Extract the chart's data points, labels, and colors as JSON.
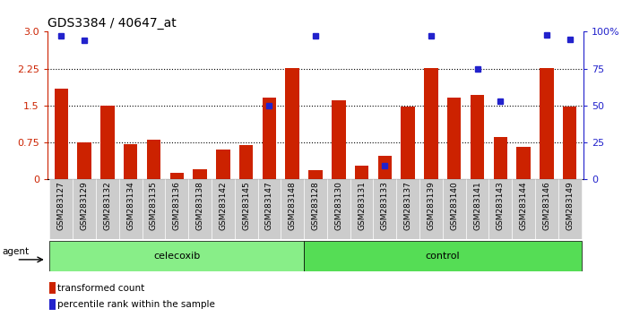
{
  "title": "GDS3384 / 40647_at",
  "samples": [
    "GSM283127",
    "GSM283129",
    "GSM283132",
    "GSM283134",
    "GSM283135",
    "GSM283136",
    "GSM283138",
    "GSM283142",
    "GSM283145",
    "GSM283147",
    "GSM283148",
    "GSM283128",
    "GSM283130",
    "GSM283131",
    "GSM283133",
    "GSM283137",
    "GSM283139",
    "GSM283140",
    "GSM283141",
    "GSM283143",
    "GSM283144",
    "GSM283146",
    "GSM283149"
  ],
  "red_values": [
    1.85,
    0.75,
    1.49,
    0.72,
    0.8,
    0.12,
    0.2,
    0.6,
    0.7,
    1.65,
    2.26,
    0.18,
    1.6,
    0.27,
    0.48,
    1.47,
    2.26,
    1.65,
    1.72,
    0.85,
    0.65,
    2.26,
    1.47
  ],
  "blue_pct": [
    97,
    94,
    null,
    null,
    null,
    null,
    null,
    null,
    null,
    50,
    null,
    97,
    null,
    null,
    9,
    null,
    97,
    null,
    75,
    53,
    null,
    98,
    95
  ],
  "n_celecoxib": 11,
  "n_control": 12,
  "celecoxib_label": "celecoxib",
  "control_label": "control",
  "agent_label": "agent",
  "legend_red": "transformed count",
  "legend_blue": "percentile rank within the sample",
  "ylim_left": [
    0,
    3.0
  ],
  "ylim_right": [
    0,
    100
  ],
  "yticks_left": [
    0,
    0.75,
    1.5,
    2.25,
    3.0
  ],
  "yticks_right": [
    0,
    25,
    50,
    75,
    100
  ],
  "bar_color": "#cc2200",
  "dot_color": "#2222cc",
  "title_fontsize": 10,
  "tick_fontsize": 7,
  "label_fontsize": 8
}
